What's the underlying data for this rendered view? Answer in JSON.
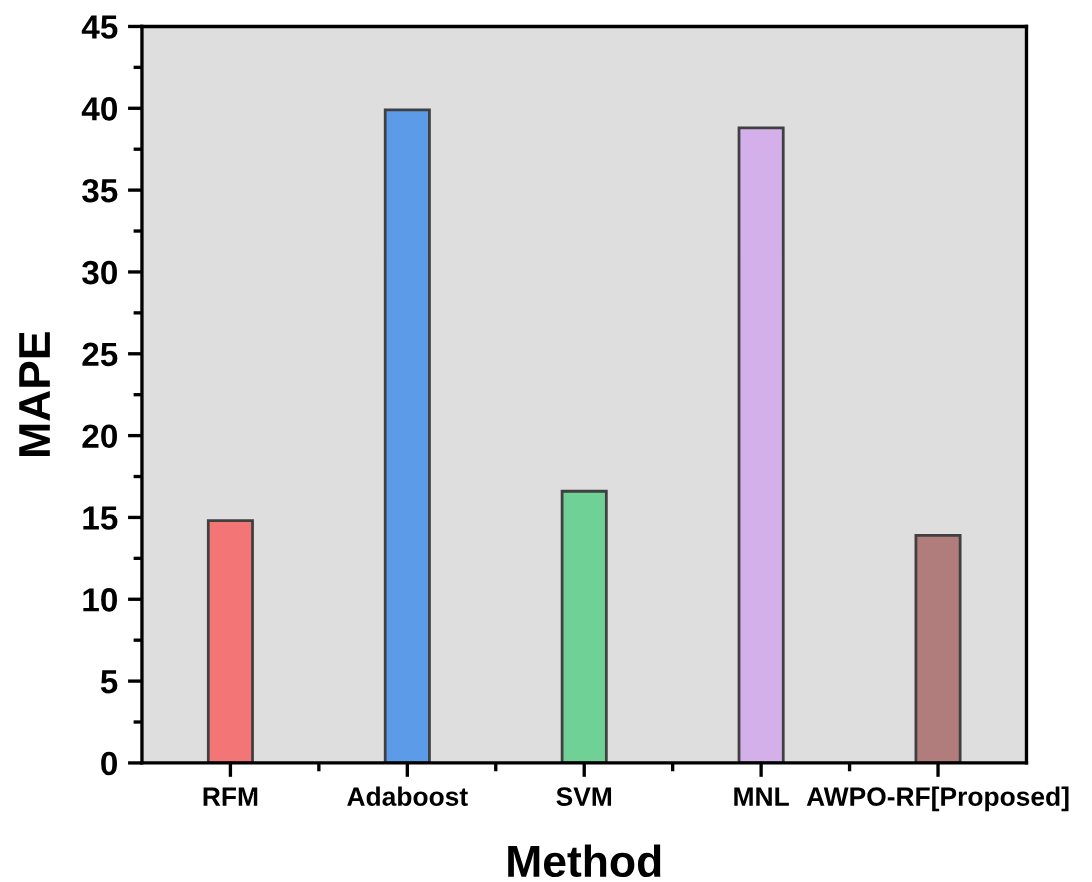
{
  "chart_data": {
    "type": "bar",
    "xlabel": "Method",
    "ylabel": "MAPE",
    "categories": [
      "RFM",
      "Adaboost",
      "SVM",
      "MNL",
      "AWPO-RF[Proposed]"
    ],
    "values": [
      14.8,
      39.9,
      16.6,
      38.8,
      13.9
    ],
    "colors": [
      "#f47575",
      "#5b9be8",
      "#70d197",
      "#d4b0eb",
      "#b07c7c"
    ],
    "ylim": [
      0,
      45
    ],
    "yticks": [
      0,
      5,
      10,
      15,
      20,
      25,
      30,
      35,
      40,
      45
    ],
    "grid": false,
    "legend": false
  }
}
